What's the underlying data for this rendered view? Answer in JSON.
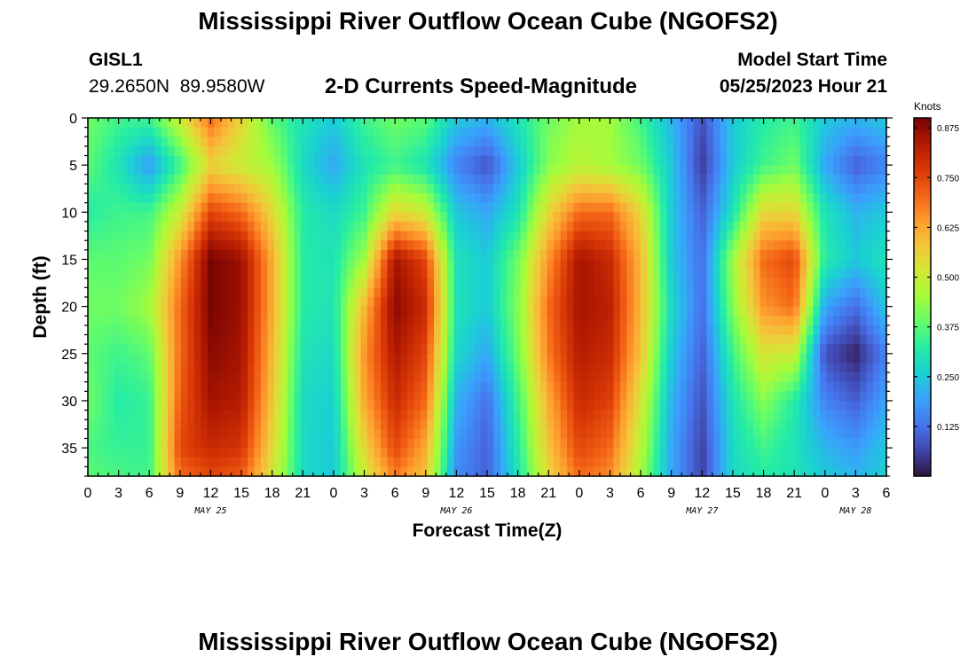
{
  "header": {
    "title": "Mississippi River Outflow Ocean Cube (NGOFS2)",
    "station": "GISL1",
    "coords": "29.2650N  89.9580W",
    "subtitle": "2-D Currents Speed-Magnitude",
    "model_start_label": "Model Start Time",
    "model_start_value": "05/25/2023 Hour 21"
  },
  "footer": {
    "title": "Mississippi River Outflow Ocean Cube (NGOFS2)"
  },
  "chart_data": {
    "type": "heatmap",
    "xlabel": "Forecast Time(Z)",
    "ylabel": "Depth (ft)",
    "x_tick_labels": [
      "0",
      "3",
      "6",
      "9",
      "12",
      "15",
      "18",
      "21",
      "0",
      "3",
      "6",
      "9",
      "12",
      "15",
      "18",
      "21",
      "0",
      "3",
      "6",
      "9",
      "12",
      "15",
      "18",
      "21",
      "0",
      "3",
      "6"
    ],
    "date_labels": [
      {
        "label": "MAY 25",
        "tick_index": 4
      },
      {
        "label": "MAY 26",
        "tick_index": 12
      },
      {
        "label": "MAY 27",
        "tick_index": 20
      },
      {
        "label": "MAY 28",
        "tick_index": 25
      }
    ],
    "y_ticks": [
      0,
      5,
      10,
      15,
      20,
      25,
      30,
      35
    ],
    "ylim": [
      0,
      38
    ],
    "xlim_hours": [
      0,
      78
    ],
    "colorbar": {
      "label": "Knots",
      "min": 0.0,
      "max": 0.9,
      "ticks": [
        "0.125",
        "0.250",
        "0.375",
        "0.500",
        "0.625",
        "0.750",
        "0.875"
      ]
    },
    "columns_hours": [
      0,
      3,
      6,
      9,
      12,
      15,
      18,
      21,
      24,
      27,
      30,
      33,
      36,
      39,
      42,
      45,
      48,
      51,
      54,
      57,
      60,
      63,
      66,
      69,
      72,
      75,
      78
    ],
    "depth_rows_ft": [
      0,
      5,
      10,
      15,
      20,
      25,
      30,
      35,
      38
    ],
    "values": [
      [
        0.4,
        0.38,
        0.32,
        0.38,
        0.4,
        0.38,
        0.4,
        0.36,
        0.38
      ],
      [
        0.35,
        0.3,
        0.35,
        0.38,
        0.4,
        0.35,
        0.32,
        0.34,
        0.36
      ],
      [
        0.35,
        0.18,
        0.35,
        0.4,
        0.45,
        0.38,
        0.34,
        0.34,
        0.35
      ],
      [
        0.5,
        0.35,
        0.5,
        0.65,
        0.7,
        0.7,
        0.72,
        0.75,
        0.7
      ],
      [
        0.7,
        0.55,
        0.75,
        0.9,
        0.9,
        0.88,
        0.85,
        0.8,
        0.75
      ],
      [
        0.55,
        0.5,
        0.7,
        0.86,
        0.86,
        0.85,
        0.83,
        0.78,
        0.72
      ],
      [
        0.38,
        0.45,
        0.55,
        0.62,
        0.62,
        0.6,
        0.58,
        0.55,
        0.52
      ],
      [
        0.3,
        0.28,
        0.32,
        0.32,
        0.32,
        0.3,
        0.28,
        0.28,
        0.28
      ],
      [
        0.25,
        0.2,
        0.28,
        0.3,
        0.3,
        0.28,
        0.26,
        0.25,
        0.25
      ],
      [
        0.35,
        0.3,
        0.35,
        0.45,
        0.6,
        0.65,
        0.62,
        0.55,
        0.5
      ],
      [
        0.4,
        0.35,
        0.55,
        0.85,
        0.88,
        0.84,
        0.8,
        0.75,
        0.68
      ],
      [
        0.38,
        0.3,
        0.5,
        0.75,
        0.8,
        0.75,
        0.7,
        0.62,
        0.58
      ],
      [
        0.25,
        0.15,
        0.25,
        0.3,
        0.3,
        0.28,
        0.22,
        0.18,
        0.16
      ],
      [
        0.22,
        0.08,
        0.2,
        0.25,
        0.25,
        0.2,
        0.12,
        0.1,
        0.1
      ],
      [
        0.3,
        0.25,
        0.3,
        0.4,
        0.42,
        0.4,
        0.35,
        0.32,
        0.3
      ],
      [
        0.4,
        0.42,
        0.55,
        0.65,
        0.7,
        0.68,
        0.62,
        0.58,
        0.55
      ],
      [
        0.45,
        0.48,
        0.7,
        0.85,
        0.85,
        0.83,
        0.8,
        0.75,
        0.7
      ],
      [
        0.45,
        0.45,
        0.7,
        0.8,
        0.82,
        0.8,
        0.76,
        0.7,
        0.66
      ],
      [
        0.35,
        0.4,
        0.55,
        0.6,
        0.6,
        0.58,
        0.52,
        0.48,
        0.45
      ],
      [
        0.22,
        0.25,
        0.25,
        0.25,
        0.28,
        0.25,
        0.22,
        0.2,
        0.2
      ],
      [
        0.08,
        0.05,
        0.1,
        0.12,
        0.12,
        0.1,
        0.08,
        0.06,
        0.06
      ],
      [
        0.25,
        0.25,
        0.3,
        0.45,
        0.42,
        0.35,
        0.3,
        0.28,
        0.28
      ],
      [
        0.32,
        0.35,
        0.55,
        0.7,
        0.65,
        0.52,
        0.42,
        0.35,
        0.32
      ],
      [
        0.35,
        0.4,
        0.55,
        0.75,
        0.7,
        0.5,
        0.32,
        0.3,
        0.3
      ],
      [
        0.25,
        0.2,
        0.3,
        0.32,
        0.2,
        0.08,
        0.15,
        0.22,
        0.25
      ],
      [
        0.22,
        0.1,
        0.22,
        0.25,
        0.12,
        0.02,
        0.1,
        0.18,
        0.22
      ],
      [
        0.25,
        0.15,
        0.25,
        0.3,
        0.25,
        0.15,
        0.2,
        0.25,
        0.26
      ]
    ]
  },
  "colors": {
    "colormap": [
      "#30123b",
      "#4145ab",
      "#4675ed",
      "#39a2fc",
      "#1bcfd4",
      "#24eca6",
      "#61fc6c",
      "#a4fc3b",
      "#d1e834",
      "#f3c63a",
      "#fe9b2d",
      "#f36315",
      "#d93806",
      "#b11901",
      "#7a0402"
    ]
  }
}
